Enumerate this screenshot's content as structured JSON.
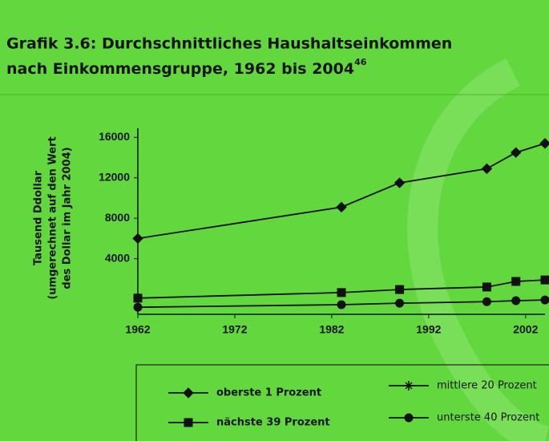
{
  "chart_data": {
    "type": "line",
    "title": [
      "Grafik 3.6: Durchschnittliches Haushaltseinkommen",
      "nach Einkommensgruppe, 1962 bis 2004"
    ],
    "title_footnote": "46",
    "y_label": [
      "Tausend Ddollar",
      "(umgerechnet auf den Wert",
      "des Dollar im Jahr 2004)"
    ],
    "x": [
      1962,
      1983,
      1989,
      1998,
      2001,
      2004
    ],
    "xlim": [
      1962,
      2004
    ],
    "xticks": [
      1962,
      1972,
      1982,
      1992,
      2002
    ],
    "ylim": [
      -1500,
      16500
    ],
    "yticks": [
      4000,
      8000,
      12000,
      16000
    ],
    "series": [
      {
        "name": "oberste 1 Prozent",
        "marker": "diamond",
        "color": "#111111",
        "values": [
          6000,
          9100,
          11500,
          12900,
          14500,
          15400
        ]
      },
      {
        "name": "mittlere 20 Prozent",
        "marker": "star",
        "color": "#111111",
        "values": [
          null,
          null,
          null,
          null,
          null,
          null
        ]
      },
      {
        "name": "nächste 39 Prozent",
        "marker": "square",
        "color": "#111111",
        "values": [
          100,
          650,
          950,
          1200,
          1750,
          1900
        ]
      },
      {
        "name": "unterste 40 Prozent",
        "marker": "circle",
        "color": "#111111",
        "values": [
          -800,
          -550,
          -400,
          -250,
          -150,
          -80
        ]
      }
    ]
  }
}
